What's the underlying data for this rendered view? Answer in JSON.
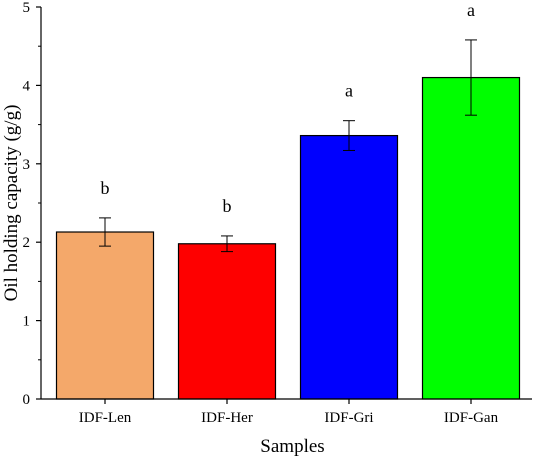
{
  "chart_data": {
    "type": "bar",
    "title": "",
    "xlabel": "Samples",
    "ylabel": "Oil holding capacity (g/g)",
    "ylim": [
      0,
      5
    ],
    "yticks": [
      "0",
      "1",
      "2",
      "3",
      "4",
      "5"
    ],
    "grid": false,
    "categories": [
      "IDF-Len",
      "IDF-Her",
      "IDF-Gri",
      "IDF-Gan"
    ],
    "values": [
      2.13,
      1.98,
      3.36,
      4.1
    ],
    "errors": [
      0.18,
      0.1,
      0.19,
      0.48
    ],
    "significance": [
      "b",
      "b",
      "a",
      "a"
    ],
    "colors": [
      "#f4a86a",
      "#fe0000",
      "#0000fe",
      "#00fe00"
    ]
  }
}
